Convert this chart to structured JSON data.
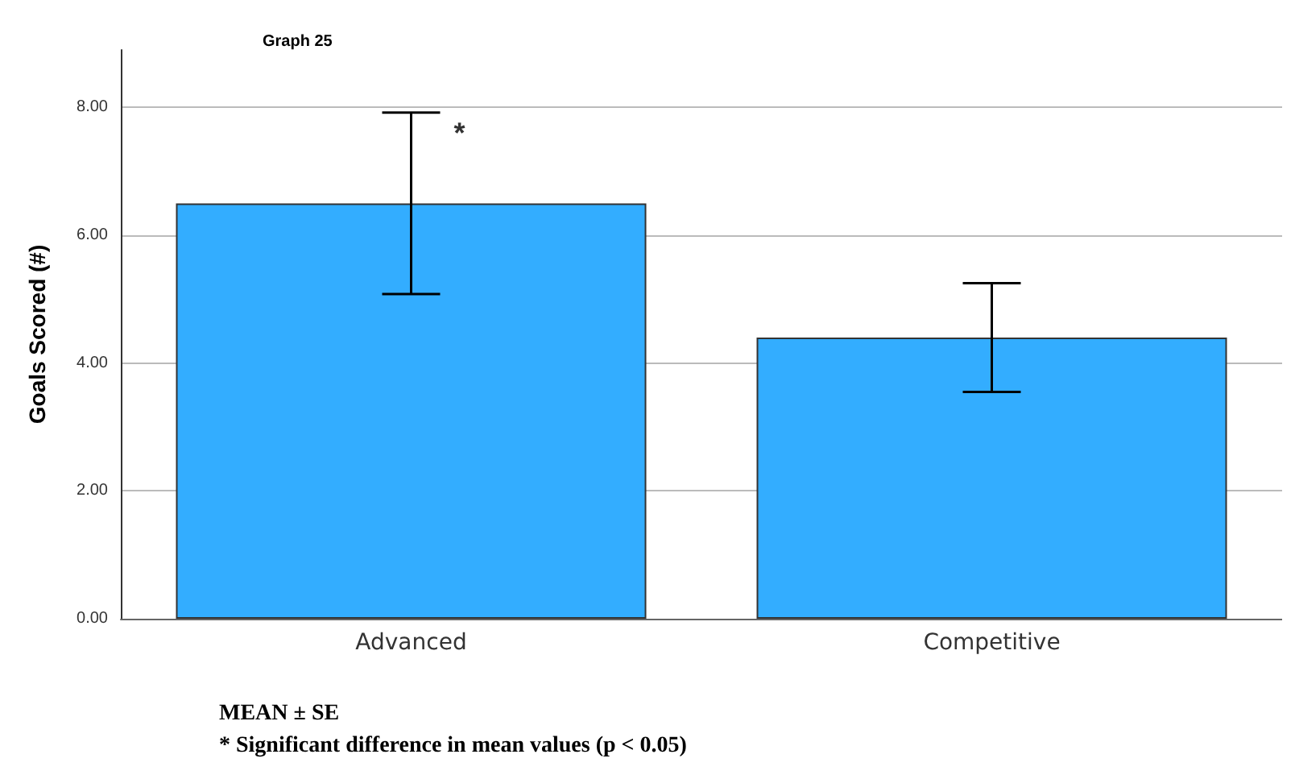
{
  "chart_data": {
    "type": "bar",
    "title": "Graph 25",
    "ylabel": "Goals Scored (#)",
    "categories": [
      "Advanced",
      "Competitive"
    ],
    "values": [
      6.5,
      4.4
    ],
    "color": "#33adff",
    "errors": [
      1.42,
      0.85
    ],
    "ylim": [
      0,
      8.9
    ],
    "yticks": [
      {
        "value": 0,
        "label": "0.00"
      },
      {
        "value": 2,
        "label": "2.00"
      },
      {
        "value": 4,
        "label": "4.00"
      },
      {
        "value": 6,
        "label": "6.00"
      },
      {
        "value": 8,
        "label": "8.00"
      }
    ],
    "grid": "y",
    "annotations": [
      {
        "text": "*",
        "x": "Advanced",
        "y": 7.6
      },
      "MEAN ± SE",
      "* Significant difference in mean values (p < 0.05)"
    ]
  }
}
